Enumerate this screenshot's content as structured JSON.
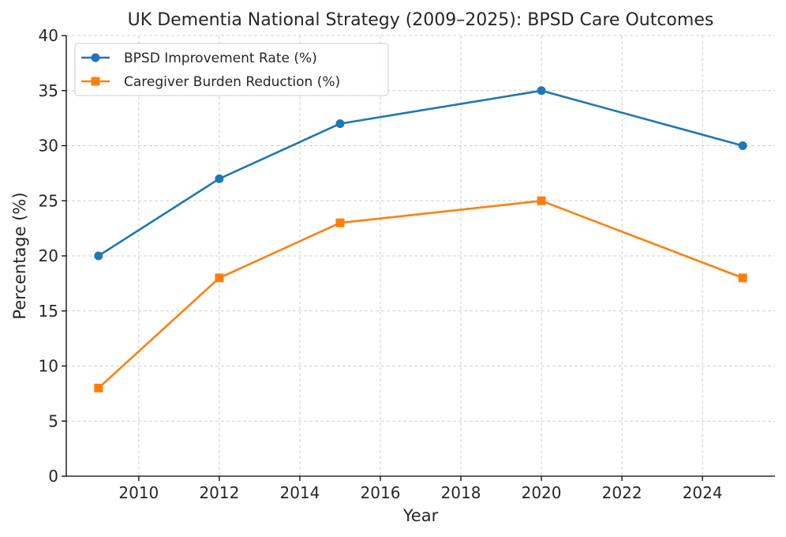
{
  "chart_data": {
    "type": "line",
    "title": "UK Dementia National Strategy (2009–2025): BPSD Care Outcomes",
    "xlabel": "Year",
    "ylabel": "Percentage (%)",
    "x": [
      2009,
      2012,
      2015,
      2020,
      2025
    ],
    "xlim": [
      2008.2,
      2025.8
    ],
    "ylim": [
      0,
      40
    ],
    "xticks": [
      2010,
      2012,
      2014,
      2016,
      2018,
      2020,
      2022,
      2024
    ],
    "yticks": [
      0,
      5,
      10,
      15,
      20,
      25,
      30,
      35,
      40
    ],
    "grid": true,
    "legend_position": "top-left",
    "series": [
      {
        "name": "BPSD Improvement Rate (%)",
        "values": [
          20,
          27,
          32,
          35,
          30
        ],
        "color": "#1f77b4",
        "marker": "circle"
      },
      {
        "name": "Caregiver Burden Reduction (%)",
        "values": [
          8,
          18,
          23,
          25,
          18
        ],
        "color": "#ff7f0e",
        "marker": "square"
      }
    ]
  }
}
